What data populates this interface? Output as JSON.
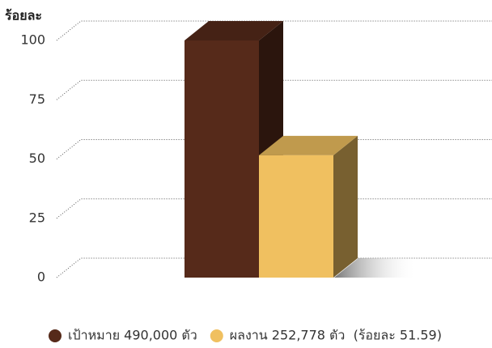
{
  "chart_data": {
    "type": "bar3d",
    "y_label": "ร้อยละ",
    "ylim": [
      0,
      100
    ],
    "yticks": [
      0,
      25,
      50,
      75,
      100
    ],
    "grid": true,
    "series": [
      {
        "name": "เป้าหมาย 490,000 ตัว",
        "color": "#562a1a",
        "values": [
          100
        ]
      },
      {
        "name": "ผลงาน 252,778 ตัว  (ร้อยละ 51.59)",
        "color": "#f0c060",
        "values": [
          51.59
        ]
      }
    ],
    "legend": "bottom"
  }
}
